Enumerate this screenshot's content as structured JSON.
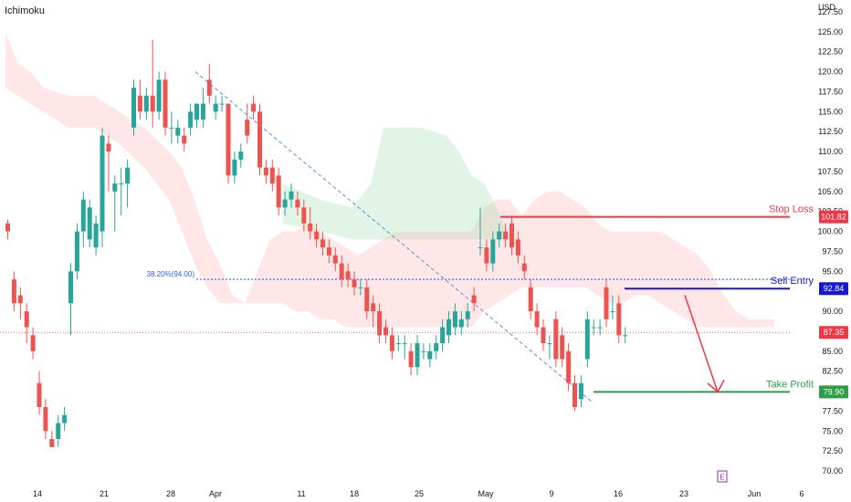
{
  "indicator": {
    "label": "Ichimoku"
  },
  "chart_data": {
    "type": "candlestick",
    "currency": "USD",
    "y_ticks": [
      "127.50",
      "125.00",
      "122.50",
      "120.00",
      "117.50",
      "115.00",
      "112.50",
      "110.00",
      "107.50",
      "105.00",
      "102.50",
      "100.00",
      "97.50",
      "95.00",
      "92.50",
      "90.00",
      "87.50",
      "85.00",
      "82.50",
      "80.00",
      "77.50",
      "75.00",
      "72.50",
      "70.00"
    ],
    "x_ticks": [
      "14",
      "21",
      "28",
      "Apr",
      "11",
      "18",
      "25",
      "May",
      "9",
      "16",
      "23",
      "Jun",
      "6"
    ],
    "levels": [
      {
        "name": "Stop Loss",
        "price": 101.82,
        "tag": "101.82",
        "color": "#f23645"
      },
      {
        "name": "Sell Entry",
        "price": 92.84,
        "tag": "92.84",
        "color": "#1616d8"
      },
      {
        "name": "Take Profit",
        "price": 79.9,
        "tag": "79.90",
        "color": "#2e9e46"
      },
      {
        "name": "",
        "price": 87.35,
        "tag": "87.35",
        "color": "#f23645"
      }
    ],
    "fib": {
      "label": "38.20%(94.00)",
      "price": 94.0,
      "color": "#2962ff"
    },
    "candles": [
      [
        101,
        100,
        101.5,
        99
      ],
      [
        94,
        91,
        95,
        90
      ],
      [
        92,
        91,
        93,
        89
      ],
      [
        90,
        88,
        91,
        86
      ],
      [
        87,
        85,
        88,
        84
      ],
      [
        81,
        78,
        82.5,
        77
      ],
      [
        78,
        75,
        79,
        74
      ],
      [
        74,
        73,
        75,
        73
      ],
      [
        74,
        76,
        77,
        73
      ],
      [
        76,
        77,
        78,
        75
      ],
      [
        91,
        95,
        96,
        87
      ],
      [
        95,
        100,
        101,
        94
      ],
      [
        100,
        104,
        105,
        98
      ],
      [
        99,
        103,
        104,
        98
      ],
      [
        98,
        101,
        102,
        97
      ],
      [
        100,
        112,
        113,
        98
      ],
      [
        111,
        110,
        112,
        105
      ],
      [
        105,
        106,
        107,
        100
      ],
      [
        106,
        106,
        108,
        102
      ],
      [
        106,
        108,
        109,
        103
      ],
      [
        113,
        118,
        119,
        112
      ],
      [
        117,
        115,
        119,
        114
      ],
      [
        115,
        117,
        118,
        114
      ],
      [
        117,
        115,
        124,
        113
      ],
      [
        115,
        119,
        120,
        114
      ],
      [
        119,
        113,
        120,
        112
      ],
      [
        113,
        113,
        115,
        111
      ],
      [
        112,
        113,
        114,
        111
      ],
      [
        112,
        111,
        113,
        110
      ],
      [
        113,
        115,
        116,
        112
      ],
      [
        114,
        116,
        116,
        113
      ],
      [
        114,
        116,
        118,
        113
      ],
      [
        119,
        117,
        121,
        116
      ],
      [
        115,
        116,
        117,
        114
      ],
      [
        116,
        116,
        117,
        115
      ],
      [
        116,
        107,
        116,
        106
      ],
      [
        107,
        109,
        110,
        106
      ],
      [
        109,
        110,
        111,
        108
      ],
      [
        114,
        112,
        116,
        111
      ],
      [
        116,
        115,
        117,
        114
      ],
      [
        115,
        108,
        116,
        107
      ],
      [
        108,
        107,
        109,
        106
      ],
      [
        108,
        106,
        109,
        105
      ],
      [
        107,
        103,
        108,
        102
      ],
      [
        103,
        104,
        105,
        102
      ],
      [
        104,
        105,
        106,
        103
      ],
      [
        104,
        103,
        105,
        102
      ],
      [
        103,
        101,
        104,
        100
      ],
      [
        101,
        100,
        103,
        99
      ],
      [
        100,
        99,
        101,
        98
      ],
      [
        99,
        98,
        100,
        97
      ],
      [
        98,
        97,
        99,
        96
      ],
      [
        97,
        96,
        98,
        95
      ],
      [
        96,
        94,
        97,
        93
      ],
      [
        95,
        94,
        96,
        93
      ],
      [
        94,
        93,
        95,
        92
      ],
      [
        93,
        93,
        94,
        92
      ],
      [
        93,
        90,
        94,
        89
      ],
      [
        91,
        90,
        92,
        88
      ],
      [
        90,
        87,
        91,
        86
      ],
      [
        88,
        87,
        89,
        86
      ],
      [
        87,
        85,
        88,
        84
      ],
      [
        86,
        86,
        87,
        85
      ],
      [
        86,
        86,
        87,
        84
      ],
      [
        85,
        83,
        86,
        82
      ],
      [
        83,
        86,
        87,
        82
      ],
      [
        85,
        85,
        86,
        84
      ],
      [
        84,
        85,
        86,
        83
      ],
      [
        85,
        86,
        87,
        84
      ],
      [
        86,
        88,
        89,
        85
      ],
      [
        87,
        89,
        90,
        86
      ],
      [
        88,
        90,
        91,
        87
      ],
      [
        88,
        89,
        90,
        87
      ],
      [
        89,
        90,
        91,
        88
      ],
      [
        92,
        91,
        93,
        90
      ],
      [
        98,
        98,
        103,
        97
      ],
      [
        98,
        96,
        99,
        95
      ],
      [
        96,
        99,
        100,
        95
      ],
      [
        99,
        100,
        101,
        98
      ],
      [
        100,
        99,
        101,
        98
      ],
      [
        101,
        98,
        102,
        97
      ],
      [
        99,
        97,
        100,
        96
      ],
      [
        96,
        95,
        97,
        94
      ],
      [
        93,
        90,
        94,
        89
      ],
      [
        90,
        88,
        91,
        87
      ],
      [
        88,
        86,
        89,
        85
      ],
      [
        86,
        86,
        87,
        84
      ],
      [
        89,
        84,
        90,
        83
      ],
      [
        87,
        84,
        88,
        83
      ],
      [
        85,
        81,
        86,
        80
      ],
      [
        81,
        78,
        82,
        77.5
      ],
      [
        79,
        81,
        82,
        78
      ],
      [
        84,
        89,
        90,
        83
      ],
      [
        88,
        88,
        89,
        87
      ],
      [
        88,
        88,
        89,
        87
      ],
      [
        93,
        89,
        94,
        88
      ],
      [
        90,
        90,
        92,
        89
      ],
      [
        91,
        87,
        92,
        86
      ],
      [
        87,
        87,
        88,
        86
      ]
    ]
  },
  "cloud": {
    "bearish": [
      [
        0,
        125
      ],
      [
        2,
        121
      ],
      [
        4,
        120
      ],
      [
        6,
        118
      ],
      [
        10,
        117
      ],
      [
        14,
        117
      ],
      [
        18,
        115
      ],
      [
        22,
        113
      ],
      [
        26,
        110
      ],
      [
        28,
        108
      ],
      [
        30,
        104
      ],
      [
        32,
        99
      ],
      [
        34,
        96
      ],
      [
        36,
        92
      ],
      [
        38,
        91
      ],
      [
        40,
        95
      ],
      [
        42,
        99
      ],
      [
        44,
        100
      ],
      [
        46,
        100
      ],
      [
        48,
        101
      ],
      [
        50,
        100
      ],
      [
        52,
        99
      ],
      [
        54,
        98
      ],
      [
        56,
        97
      ],
      [
        58,
        98
      ],
      [
        60,
        99
      ],
      [
        62,
        100
      ],
      [
        66,
        100
      ],
      [
        70,
        100
      ],
      [
        74,
        100
      ],
      [
        76,
        103
      ],
      [
        78,
        104
      ],
      [
        80,
        104
      ],
      [
        82,
        102
      ],
      [
        84,
        104
      ],
      [
        86,
        105
      ],
      [
        88,
        105
      ],
      [
        90,
        104
      ],
      [
        92,
        103
      ],
      [
        94,
        101
      ],
      [
        96,
        100
      ],
      [
        98,
        100
      ],
      [
        100,
        100
      ],
      [
        102,
        100
      ],
      [
        104,
        100
      ],
      [
        106,
        99
      ],
      [
        108,
        98
      ],
      [
        110,
        97
      ],
      [
        112,
        95
      ],
      [
        114,
        92
      ],
      [
        116,
        90
      ],
      [
        118,
        89
      ],
      [
        120,
        89
      ],
      [
        122,
        89
      ]
    ],
    "bearishLow": [
      [
        0,
        118
      ],
      [
        2,
        117
      ],
      [
        4,
        116
      ],
      [
        6,
        115
      ],
      [
        10,
        113
      ],
      [
        14,
        113
      ],
      [
        18,
        111
      ],
      [
        22,
        108
      ],
      [
        26,
        104
      ],
      [
        28,
        100
      ],
      [
        30,
        96
      ],
      [
        32,
        93
      ],
      [
        34,
        91
      ],
      [
        36,
        91
      ],
      [
        38,
        91
      ],
      [
        40,
        91
      ],
      [
        42,
        91
      ],
      [
        44,
        91
      ],
      [
        46,
        90
      ],
      [
        48,
        90
      ],
      [
        50,
        89
      ],
      [
        52,
        89
      ],
      [
        54,
        88
      ],
      [
        56,
        88
      ],
      [
        58,
        88
      ],
      [
        60,
        88
      ],
      [
        62,
        88
      ],
      [
        66,
        88
      ],
      [
        70,
        88
      ],
      [
        74,
        88
      ],
      [
        76,
        90
      ],
      [
        78,
        91
      ],
      [
        80,
        92
      ],
      [
        82,
        93
      ],
      [
        84,
        93
      ],
      [
        86,
        93
      ],
      [
        88,
        93
      ],
      [
        90,
        93
      ],
      [
        92,
        93
      ],
      [
        94,
        92
      ],
      [
        96,
        91
      ],
      [
        98,
        91
      ],
      [
        100,
        92
      ],
      [
        102,
        92
      ],
      [
        104,
        91
      ],
      [
        106,
        90
      ],
      [
        108,
        89
      ],
      [
        110,
        88
      ],
      [
        112,
        88
      ],
      [
        114,
        88
      ],
      [
        116,
        88
      ],
      [
        118,
        88
      ],
      [
        120,
        88
      ],
      [
        122,
        88
      ]
    ],
    "bullish": [
      [
        44,
        106
      ],
      [
        50,
        104
      ],
      [
        55,
        103
      ],
      [
        58,
        106
      ],
      [
        60,
        113
      ],
      [
        62,
        113
      ],
      [
        66,
        113
      ],
      [
        70,
        112
      ],
      [
        72,
        110
      ],
      [
        74,
        107
      ],
      [
        76,
        106
      ],
      [
        78,
        103
      ],
      [
        80,
        99
      ],
      [
        82,
        98
      ]
    ],
    "bullishLow": [
      [
        44,
        101
      ],
      [
        50,
        100
      ],
      [
        55,
        99
      ],
      [
        58,
        99
      ],
      [
        60,
        99
      ],
      [
        62,
        99
      ],
      [
        66,
        99
      ],
      [
        70,
        99
      ],
      [
        72,
        99
      ],
      [
        74,
        99
      ],
      [
        76,
        99
      ],
      [
        78,
        99
      ],
      [
        80,
        99
      ],
      [
        82,
        98
      ]
    ]
  }
}
